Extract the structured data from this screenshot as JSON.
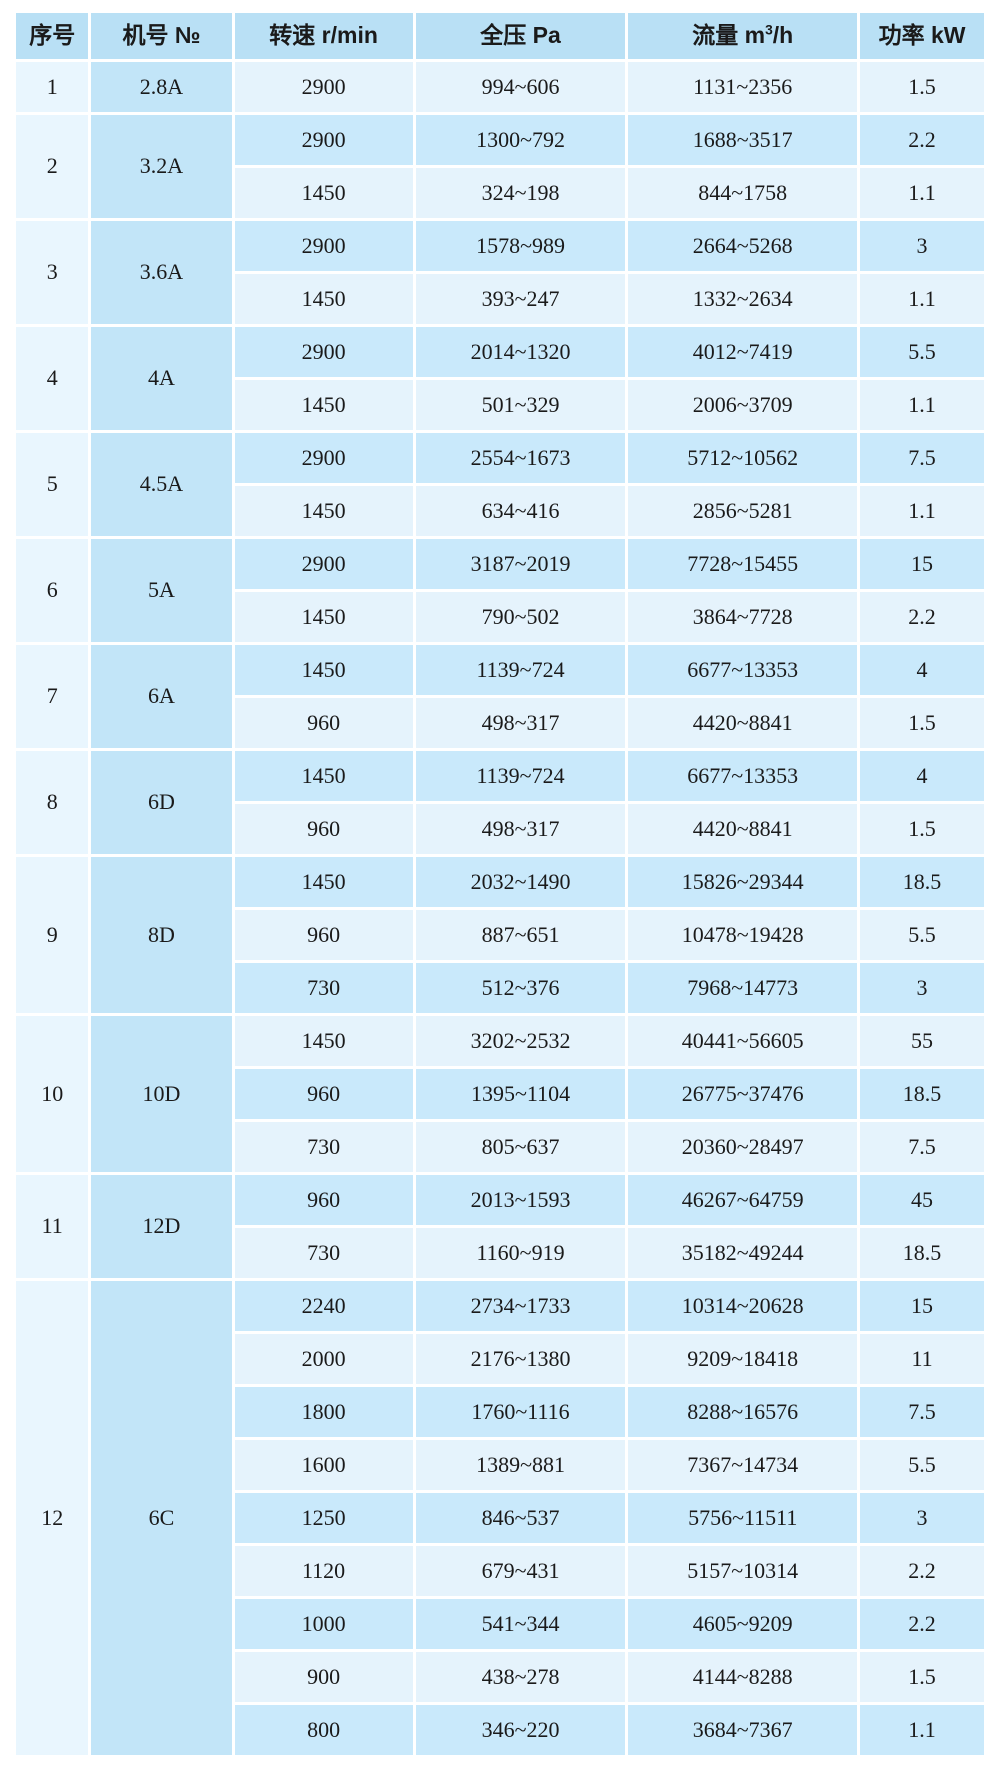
{
  "colors": {
    "header_bg": "#b9e0f5",
    "seq_col_bg": "#e9f6fe",
    "model_col_bg": "#c2e5f8",
    "row_light_bg": "#e5f3fc",
    "row_dark_bg": "#c9e9fb",
    "border": "#ffffff",
    "text": "#1a1a1a"
  },
  "chart_data": {
    "type": "table",
    "columns": [
      "序号",
      "机号 №",
      "转速 r/min",
      "全压 Pa",
      "流量 m³/h",
      "功率 kW"
    ],
    "headers": {
      "seq": "序号",
      "model": "机号 №",
      "speed": "转速 r/min",
      "pressure": "全压 Pa",
      "flow_prefix": "流量 m",
      "flow_sup": "3",
      "flow_suffix": "/h",
      "power": "功率 kW"
    },
    "groups": [
      {
        "seq": "1",
        "model": "2.8A",
        "rows": [
          [
            "2900",
            "994~606",
            "1131~2356",
            "1.5"
          ]
        ]
      },
      {
        "seq": "2",
        "model": "3.2A",
        "rows": [
          [
            "2900",
            "1300~792",
            "1688~3517",
            "2.2"
          ],
          [
            "1450",
            "324~198",
            "844~1758",
            "1.1"
          ]
        ]
      },
      {
        "seq": "3",
        "model": "3.6A",
        "rows": [
          [
            "2900",
            "1578~989",
            "2664~5268",
            "3"
          ],
          [
            "1450",
            "393~247",
            "1332~2634",
            "1.1"
          ]
        ]
      },
      {
        "seq": "4",
        "model": "4A",
        "rows": [
          [
            "2900",
            "2014~1320",
            "4012~7419",
            "5.5"
          ],
          [
            "1450",
            "501~329",
            "2006~3709",
            "1.1"
          ]
        ]
      },
      {
        "seq": "5",
        "model": "4.5A",
        "rows": [
          [
            "2900",
            "2554~1673",
            "5712~10562",
            "7.5"
          ],
          [
            "1450",
            "634~416",
            "2856~5281",
            "1.1"
          ]
        ]
      },
      {
        "seq": "6",
        "model": "5A",
        "rows": [
          [
            "2900",
            "3187~2019",
            "7728~15455",
            "15"
          ],
          [
            "1450",
            "790~502",
            "3864~7728",
            "2.2"
          ]
        ]
      },
      {
        "seq": "7",
        "model": "6A",
        "rows": [
          [
            "1450",
            "1139~724",
            "6677~13353",
            "4"
          ],
          [
            "960",
            "498~317",
            "4420~8841",
            "1.5"
          ]
        ]
      },
      {
        "seq": "8",
        "model": "6D",
        "rows": [
          [
            "1450",
            "1139~724",
            "6677~13353",
            "4"
          ],
          [
            "960",
            "498~317",
            "4420~8841",
            "1.5"
          ]
        ]
      },
      {
        "seq": "9",
        "model": "8D",
        "rows": [
          [
            "1450",
            "2032~1490",
            "15826~29344",
            "18.5"
          ],
          [
            "960",
            "887~651",
            "10478~19428",
            "5.5"
          ],
          [
            "730",
            "512~376",
            "7968~14773",
            "3"
          ]
        ]
      },
      {
        "seq": "10",
        "model": "10D",
        "rows": [
          [
            "1450",
            "3202~2532",
            "40441~56605",
            "55"
          ],
          [
            "960",
            "1395~1104",
            "26775~37476",
            "18.5"
          ],
          [
            "730",
            "805~637",
            "20360~28497",
            "7.5"
          ]
        ]
      },
      {
        "seq": "11",
        "model": "12D",
        "rows": [
          [
            "960",
            "2013~1593",
            "46267~64759",
            "45"
          ],
          [
            "730",
            "1160~919",
            "35182~49244",
            "18.5"
          ]
        ]
      },
      {
        "seq": "12",
        "model": "6C",
        "rows": [
          [
            "2240",
            "2734~1733",
            "10314~20628",
            "15"
          ],
          [
            "2000",
            "2176~1380",
            "9209~18418",
            "11"
          ],
          [
            "1800",
            "1760~1116",
            "8288~16576",
            "7.5"
          ],
          [
            "1600",
            "1389~881",
            "7367~14734",
            "5.5"
          ],
          [
            "1250",
            "846~537",
            "5756~11511",
            "3"
          ],
          [
            "1120",
            "679~431",
            "5157~10314",
            "2.2"
          ],
          [
            "1000",
            "541~344",
            "4605~9209",
            "2.2"
          ],
          [
            "900",
            "438~278",
            "4144~8288",
            "1.5"
          ],
          [
            "800",
            "346~220",
            "3684~7367",
            "1.1"
          ]
        ]
      }
    ]
  }
}
